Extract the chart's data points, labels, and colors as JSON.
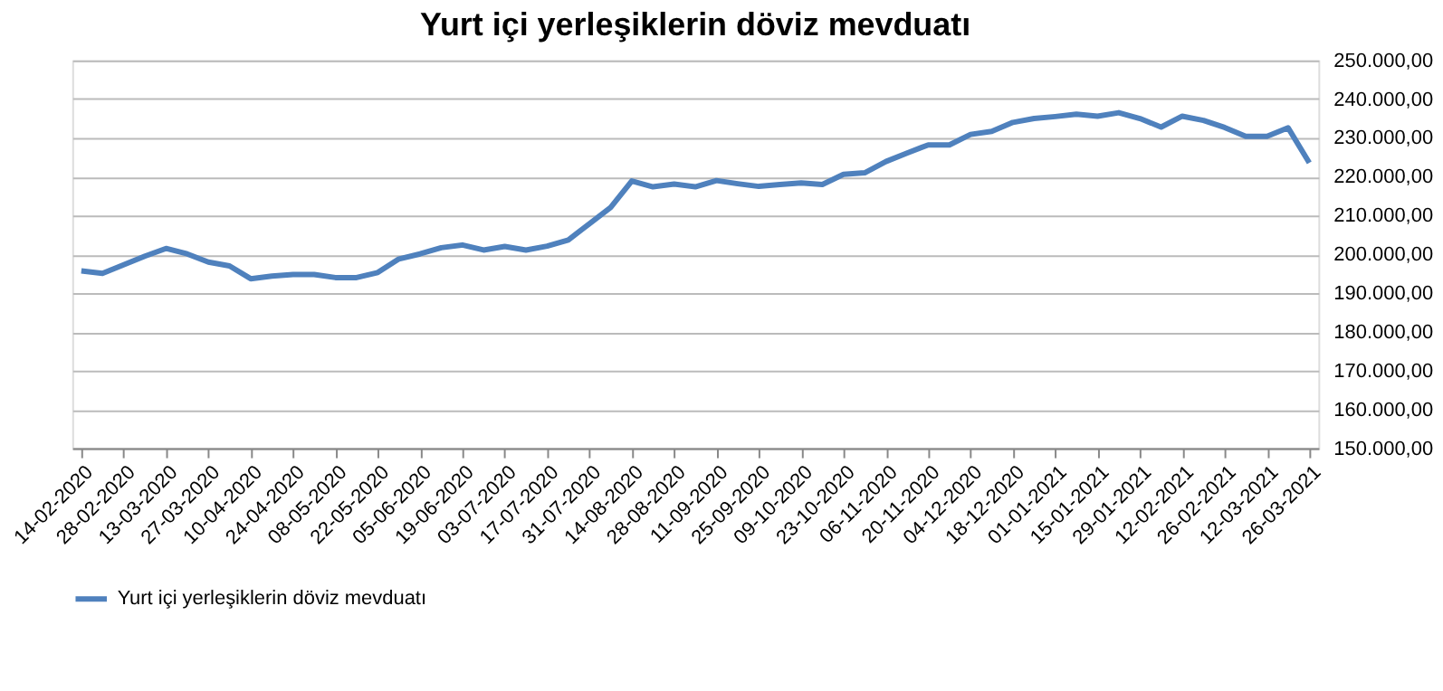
{
  "chart_data": {
    "type": "line",
    "title": "Yurt  içi yerleşiklerin döviz mevduatı",
    "x": [
      "2020-02-14",
      "2020-02-21",
      "2020-02-28",
      "2020-03-06",
      "2020-03-13",
      "2020-03-20",
      "2020-03-27",
      "2020-04-03",
      "2020-04-10",
      "2020-04-17",
      "2020-04-24",
      "2020-05-01",
      "2020-05-08",
      "2020-05-15",
      "2020-05-22",
      "2020-05-29",
      "2020-06-05",
      "2020-06-12",
      "2020-06-19",
      "2020-06-26",
      "2020-07-03",
      "2020-07-10",
      "2020-07-17",
      "2020-07-24",
      "2020-07-31",
      "2020-08-07",
      "2020-08-14",
      "2020-08-21",
      "2020-08-28",
      "2020-09-04",
      "2020-09-11",
      "2020-09-18",
      "2020-09-25",
      "2020-10-02",
      "2020-10-09",
      "2020-10-16",
      "2020-10-23",
      "2020-10-30",
      "2020-11-06",
      "2020-11-13",
      "2020-11-20",
      "2020-11-27",
      "2020-12-04",
      "2020-12-11",
      "2020-12-18",
      "2020-12-25",
      "2021-01-01",
      "2021-01-08",
      "2021-01-15",
      "2021-01-22",
      "2021-01-29",
      "2021-02-05",
      "2021-02-12",
      "2021-02-19",
      "2021-02-26",
      "2021-03-05",
      "2021-03-12",
      "2021-03-19",
      "2021-03-26"
    ],
    "series": [
      {
        "name": "Yurt  içi yerleşiklerin döviz mevduatı",
        "color": "#4f81bd",
        "values": [
          195700,
          195100,
          197300,
          199500,
          201500,
          200100,
          198000,
          197000,
          193700,
          194400,
          194800,
          194800,
          194000,
          194000,
          195300,
          198800,
          200100,
          201700,
          202400,
          201100,
          202000,
          201100,
          202100,
          203700,
          207900,
          212100,
          218900,
          217400,
          218100,
          217400,
          219000,
          218200,
          217500,
          218000,
          218400,
          218000,
          220600,
          221000,
          223900,
          226100,
          228200,
          228200,
          230900,
          231700,
          234000,
          235000,
          235500,
          236100,
          235600,
          236500,
          235000,
          232800,
          235600,
          234500,
          232700,
          230400,
          230400,
          232600,
          223600
        ]
      }
    ],
    "xlim": [
      "2020-02-11",
      "2021-03-29"
    ],
    "xticks": [
      {
        "value": "2020-02-14",
        "label": "14-02-2020"
      },
      {
        "value": "2020-02-28",
        "label": "28-02-2020"
      },
      {
        "value": "2020-03-13",
        "label": "13-03-2020"
      },
      {
        "value": "2020-03-27",
        "label": "27-03-2020"
      },
      {
        "value": "2020-04-10",
        "label": "10-04-2020"
      },
      {
        "value": "2020-04-24",
        "label": "24-04-2020"
      },
      {
        "value": "2020-05-08",
        "label": "08-05-2020"
      },
      {
        "value": "2020-05-22",
        "label": "22-05-2020"
      },
      {
        "value": "2020-06-05",
        "label": "05-06-2020"
      },
      {
        "value": "2020-06-19",
        "label": "19-06-2020"
      },
      {
        "value": "2020-07-03",
        "label": "03-07-2020"
      },
      {
        "value": "2020-07-17",
        "label": "17-07-2020"
      },
      {
        "value": "2020-07-31",
        "label": "31-07-2020"
      },
      {
        "value": "2020-08-14",
        "label": "14-08-2020"
      },
      {
        "value": "2020-08-28",
        "label": "28-08-2020"
      },
      {
        "value": "2020-09-11",
        "label": "11-09-2020"
      },
      {
        "value": "2020-09-25",
        "label": "25-09-2020"
      },
      {
        "value": "2020-10-09",
        "label": "09-10-2020"
      },
      {
        "value": "2020-10-23",
        "label": "23-10-2020"
      },
      {
        "value": "2020-11-06",
        "label": "06-11-2020"
      },
      {
        "value": "2020-11-20",
        "label": "20-11-2020"
      },
      {
        "value": "2020-12-04",
        "label": "04-12-2020"
      },
      {
        "value": "2020-12-18",
        "label": "18-12-2020"
      },
      {
        "value": "2021-01-01",
        "label": "01-01-2021"
      },
      {
        "value": "2021-01-15",
        "label": "15-01-2021"
      },
      {
        "value": "2021-01-29",
        "label": "29-01-2021"
      },
      {
        "value": "2021-02-12",
        "label": "12-02-2021"
      },
      {
        "value": "2021-02-26",
        "label": "26-02-2021"
      },
      {
        "value": "2021-03-12",
        "label": "12-03-2021"
      },
      {
        "value": "2021-03-26",
        "label": "26-03-2021"
      }
    ],
    "ylim": [
      150000,
      250000
    ],
    "yticks": [
      {
        "value": 150000,
        "label": "150.000,00"
      },
      {
        "value": 160000,
        "label": "160.000,00"
      },
      {
        "value": 170000,
        "label": "170.000,00"
      },
      {
        "value": 180000,
        "label": "180.000,00"
      },
      {
        "value": 190000,
        "label": "190.000,00"
      },
      {
        "value": 200000,
        "label": "200.000,00"
      },
      {
        "value": 210000,
        "label": "210.000,00"
      },
      {
        "value": 220000,
        "label": "220.000,00"
      },
      {
        "value": 230000,
        "label": "230.000,00"
      },
      {
        "value": 240000,
        "label": "240.000,00"
      },
      {
        "value": 250000,
        "label": "250.000,00"
      }
    ],
    "grid": "y",
    "legend": "bottom",
    "marker": "none",
    "line_style": "solid"
  }
}
